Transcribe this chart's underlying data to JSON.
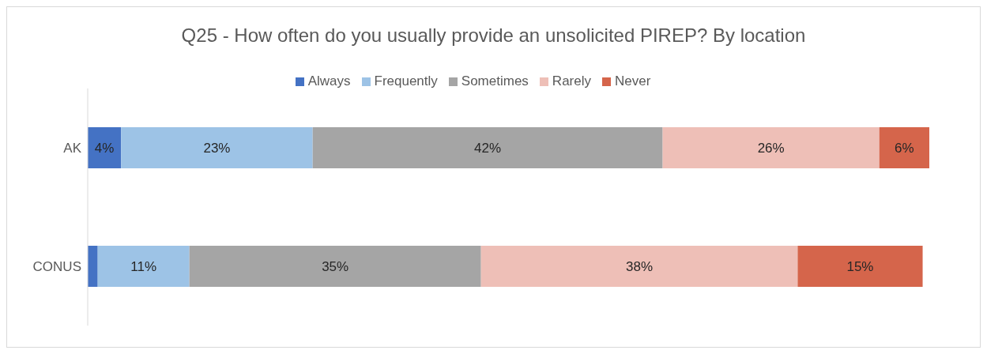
{
  "chart_data": {
    "type": "bar",
    "orientation": "horizontal",
    "stacked": true,
    "title": "Q25 - How often do you usually provide an unsolicited PIREP? By location",
    "categories": [
      "AK",
      "CONUS"
    ],
    "series": [
      {
        "name": "Always",
        "color": "#4472c4",
        "values": [
          4,
          1.2
        ],
        "value_labels": [
          "4%",
          null
        ]
      },
      {
        "name": "Frequently",
        "color": "#9dc3e6",
        "values": [
          23,
          11
        ],
        "value_labels": [
          "23%",
          "11%"
        ]
      },
      {
        "name": "Sometimes",
        "color": "#a5a5a5",
        "values": [
          42,
          35
        ],
        "value_labels": [
          "42%",
          "35%"
        ]
      },
      {
        "name": "Rarely",
        "color": "#eebfb7",
        "values": [
          26,
          38
        ],
        "value_labels": [
          "26%",
          "38%"
        ]
      },
      {
        "name": "Never",
        "color": "#d5654b",
        "values": [
          6,
          15
        ],
        "value_labels": [
          "6%",
          "15%"
        ]
      }
    ],
    "legend": "top",
    "tick_labels": "y"
  }
}
